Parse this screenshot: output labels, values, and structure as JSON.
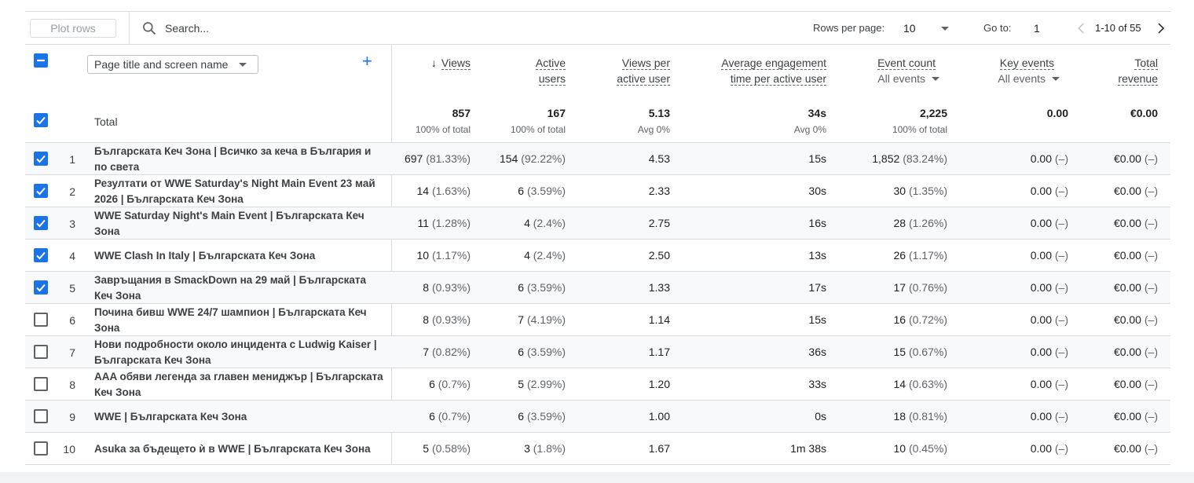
{
  "toolbar": {
    "plot_rows": "Plot rows",
    "search_placeholder": "Search...",
    "rows_per_page_label": "Rows per page:",
    "rows_per_page_value": "10",
    "goto_label": "Go to:",
    "goto_value": "1",
    "range": "1-10 of 55"
  },
  "header": {
    "dimension": "Page title and screen name",
    "columns": {
      "views": "Views",
      "active_users": [
        "Active",
        "users"
      ],
      "views_per_user": [
        "Views per",
        "active user"
      ],
      "engagement": [
        "Average engagement",
        "time per active user"
      ],
      "event_count": "Event count",
      "event_count_filter": "All events",
      "key_events": "Key events",
      "key_events_filter": "All events",
      "revenue": [
        "Total",
        "revenue"
      ]
    }
  },
  "totals": {
    "label": "Total",
    "views": "857",
    "views_sub": "100% of total",
    "users": "167",
    "users_sub": "100% of total",
    "vpu": "5.13",
    "vpu_sub": "Avg 0%",
    "eng": "34s",
    "eng_sub": "Avg 0%",
    "events": "2,225",
    "events_sub": "100% of total",
    "key": "0.00",
    "revenue": "€0.00"
  },
  "rows": [
    {
      "n": "1",
      "checked": true,
      "title": "Българската Кеч Зона | Всичко за кеча в България и по света",
      "views": "697",
      "views_pct": "(81.33%)",
      "users": "154",
      "users_pct": "(92.22%)",
      "vpu": "4.53",
      "eng": "15s",
      "events": "1,852",
      "events_pct": "(83.24%)",
      "key": "0.00",
      "key_pct": "(–)",
      "rev": "€0.00",
      "rev_pct": "(–)"
    },
    {
      "n": "2",
      "checked": true,
      "title": "Резултати от WWE Saturday's Night Main Event 23 май 2026 | Българската Кеч Зона",
      "views": "14",
      "views_pct": "(1.63%)",
      "users": "6",
      "users_pct": "(3.59%)",
      "vpu": "2.33",
      "eng": "30s",
      "events": "30",
      "events_pct": "(1.35%)",
      "key": "0.00",
      "key_pct": "(–)",
      "rev": "€0.00",
      "rev_pct": "(–)"
    },
    {
      "n": "3",
      "checked": true,
      "title": "WWE Saturday Night's Main Event | Българската Кеч Зона",
      "views": "11",
      "views_pct": "(1.28%)",
      "users": "4",
      "users_pct": "(2.4%)",
      "vpu": "2.75",
      "eng": "16s",
      "events": "28",
      "events_pct": "(1.26%)",
      "key": "0.00",
      "key_pct": "(–)",
      "rev": "€0.00",
      "rev_pct": "(–)"
    },
    {
      "n": "4",
      "checked": true,
      "title": "WWE Clash In Italy | Българската Кеч Зона",
      "views": "10",
      "views_pct": "(1.17%)",
      "users": "4",
      "users_pct": "(2.4%)",
      "vpu": "2.50",
      "eng": "13s",
      "events": "26",
      "events_pct": "(1.17%)",
      "key": "0.00",
      "key_pct": "(–)",
      "rev": "€0.00",
      "rev_pct": "(–)"
    },
    {
      "n": "5",
      "checked": true,
      "title": "Завръщания в SmackDown на 29 май | Българската Кеч Зона",
      "views": "8",
      "views_pct": "(0.93%)",
      "users": "6",
      "users_pct": "(3.59%)",
      "vpu": "1.33",
      "eng": "17s",
      "events": "17",
      "events_pct": "(0.76%)",
      "key": "0.00",
      "key_pct": "(–)",
      "rev": "€0.00",
      "rev_pct": "(–)"
    },
    {
      "n": "6",
      "checked": false,
      "title": "Почина бивш WWE 24/7 шампион | Българската Кеч Зона",
      "views": "8",
      "views_pct": "(0.93%)",
      "users": "7",
      "users_pct": "(4.19%)",
      "vpu": "1.14",
      "eng": "15s",
      "events": "16",
      "events_pct": "(0.72%)",
      "key": "0.00",
      "key_pct": "(–)",
      "rev": "€0.00",
      "rev_pct": "(–)"
    },
    {
      "n": "7",
      "checked": false,
      "title": "Нови подробности около инцидента с Ludwig Kaiser | Българската Кеч Зона",
      "views": "7",
      "views_pct": "(0.82%)",
      "users": "6",
      "users_pct": "(3.59%)",
      "vpu": "1.17",
      "eng": "36s",
      "events": "15",
      "events_pct": "(0.67%)",
      "key": "0.00",
      "key_pct": "(–)",
      "rev": "€0.00",
      "rev_pct": "(–)"
    },
    {
      "n": "8",
      "checked": false,
      "title": "AAA обяви легенда за главен мениджър | Българската Кеч Зона",
      "views": "6",
      "views_pct": "(0.7%)",
      "users": "5",
      "users_pct": "(2.99%)",
      "vpu": "1.20",
      "eng": "33s",
      "events": "14",
      "events_pct": "(0.63%)",
      "key": "0.00",
      "key_pct": "(–)",
      "rev": "€0.00",
      "rev_pct": "(–)"
    },
    {
      "n": "9",
      "checked": false,
      "title": "WWE | Българската Кеч Зона",
      "views": "6",
      "views_pct": "(0.7%)",
      "users": "6",
      "users_pct": "(3.59%)",
      "vpu": "1.00",
      "eng": "0s",
      "events": "18",
      "events_pct": "(0.81%)",
      "key": "0.00",
      "key_pct": "(–)",
      "rev": "€0.00",
      "rev_pct": "(–)"
    },
    {
      "n": "10",
      "checked": false,
      "title": "Asuka за бъдещето ѝ в WWE | Българската Кеч Зона",
      "views": "5",
      "views_pct": "(0.58%)",
      "users": "3",
      "users_pct": "(1.8%)",
      "vpu": "1.67",
      "eng": "1m 38s",
      "events": "10",
      "events_pct": "(0.45%)",
      "key": "0.00",
      "key_pct": "(–)",
      "rev": "€0.00",
      "rev_pct": "(–)"
    }
  ]
}
